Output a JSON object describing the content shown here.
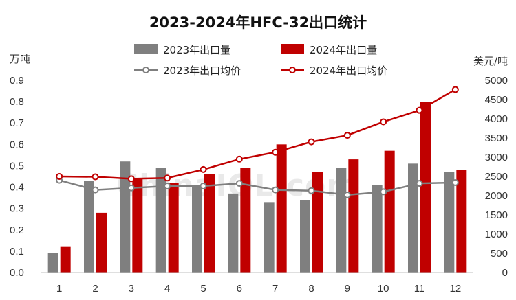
{
  "chart_data": {
    "type": "bar",
    "title": "2023-2024年HFC-32出口统计",
    "categories": [
      "1",
      "2",
      "3",
      "4",
      "5",
      "6",
      "7",
      "8",
      "9",
      "10",
      "11",
      "12"
    ],
    "y_left": {
      "unit_label": "万吨",
      "ylim": [
        0,
        0.9
      ],
      "ticks": [
        "0.0",
        "0.1",
        "0.2",
        "0.3",
        "0.4",
        "0.5",
        "0.6",
        "0.7",
        "0.8",
        "0.9"
      ]
    },
    "y_right": {
      "unit_label": "美元/吨",
      "ylim": [
        0,
        5000
      ],
      "ticks": [
        "0",
        "500",
        "1000",
        "1500",
        "2000",
        "2500",
        "3000",
        "3500",
        "4000",
        "4500",
        "5000"
      ]
    },
    "series": [
      {
        "name": "2023年出口量",
        "kind": "bar",
        "axis": "left",
        "color": "#7f7f7f",
        "values": [
          0.09,
          0.43,
          0.52,
          0.49,
          0.4,
          0.37,
          0.33,
          0.34,
          0.49,
          0.41,
          0.51,
          0.47
        ]
      },
      {
        "name": "2024年出口量",
        "kind": "bar",
        "axis": "left",
        "color": "#c00000",
        "values": [
          0.12,
          0.28,
          0.44,
          0.42,
          0.46,
          0.49,
          0.6,
          0.47,
          0.53,
          0.57,
          0.8,
          0.48
        ]
      },
      {
        "name": "2023年出口均价",
        "kind": "line",
        "axis": "right",
        "color": "#7f7f7f",
        "values": [
          2400,
          2150,
          2200,
          2250,
          2250,
          2320,
          2150,
          2130,
          2020,
          2100,
          2320,
          2340
        ]
      },
      {
        "name": "2024年出口均价",
        "kind": "line",
        "axis": "right",
        "color": "#c00000",
        "values": [
          2500,
          2490,
          2440,
          2460,
          2680,
          2950,
          3130,
          3400,
          3570,
          3920,
          4220,
          4760
        ]
      }
    ],
    "legend_position": "top",
    "grid": false,
    "watermark": "ChinaIOL.com"
  }
}
